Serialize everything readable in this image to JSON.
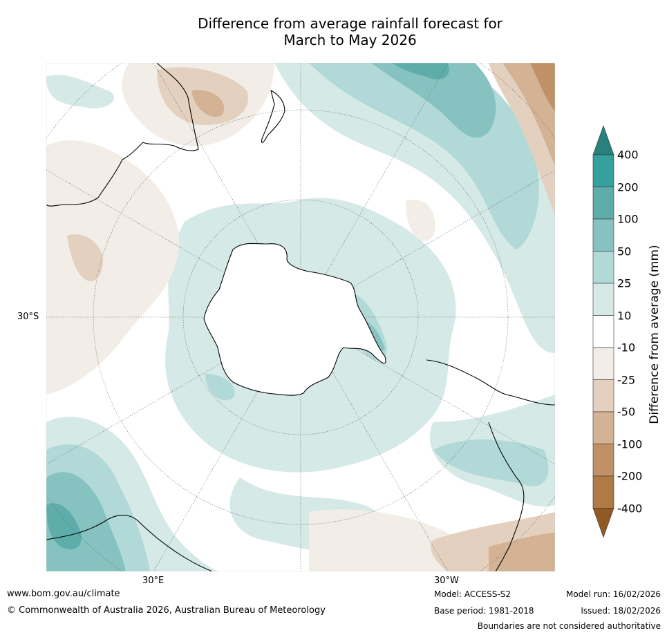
{
  "title": {
    "line1": "Difference from average rainfall forecast for",
    "line2": "March to May 2026"
  },
  "map": {
    "projection": "south-polar stereographic",
    "lat_label": "30°S",
    "lon_labels": [
      "30°E",
      "30°W"
    ]
  },
  "colorbar": {
    "label": "Difference from average (mm)",
    "ticks": [
      "400",
      "200",
      "100",
      "50",
      "25",
      "10",
      "-10",
      "-25",
      "-50",
      "-100",
      "-200",
      "-400"
    ],
    "colors": [
      "#2a7f7f",
      "#35a09c",
      "#5eadaa",
      "#86c3c0",
      "#b0d9d7",
      "#d5e9e7",
      "#ffffff",
      "#f2ede6",
      "#e3d0be",
      "#d3b393",
      "#c09167",
      "#b07a45",
      "#8f5a24"
    ]
  },
  "footer": {
    "website": "www.bom.gov.au/climate",
    "copyright": "© Commonwealth of Australia 2026, Australian Bureau of Meteorology",
    "model": "Model: ACCESS-S2",
    "base_period": "Base period: 1981-2018",
    "model_run": "Model run: 16/02/2026",
    "issued": "Issued: 18/02/2026",
    "disclaimer": "Boundaries are not considered authoritative"
  }
}
